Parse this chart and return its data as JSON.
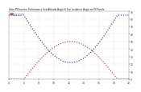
{
  "title": "Solar PV/Inverter Performance Sun Altitude Angle & Sun Incidence Angle on PV Panels",
  "legend_line1": "---- Sun Altitude --",
  "bg_color": "#ffffff",
  "plot_bg_color": "#ffffff",
  "grid_color": "#bbbbbb",
  "x_start": 4,
  "x_end": 20,
  "y_min": 0,
  "y_max": 90,
  "altitude_color": "#dd2222",
  "incidence_color": "#2222cc",
  "altitude_peak": 50,
  "incidence_max": 85,
  "incidence_min": 22,
  "sun_rise": 6.0,
  "sun_set": 18.5,
  "solar_noon": 12.25,
  "yticks": [
    0,
    10,
    20,
    30,
    40,
    50,
    60,
    70,
    80,
    90
  ],
  "xticks": [
    4,
    6,
    8,
    10,
    12,
    14,
    16,
    18,
    20
  ]
}
